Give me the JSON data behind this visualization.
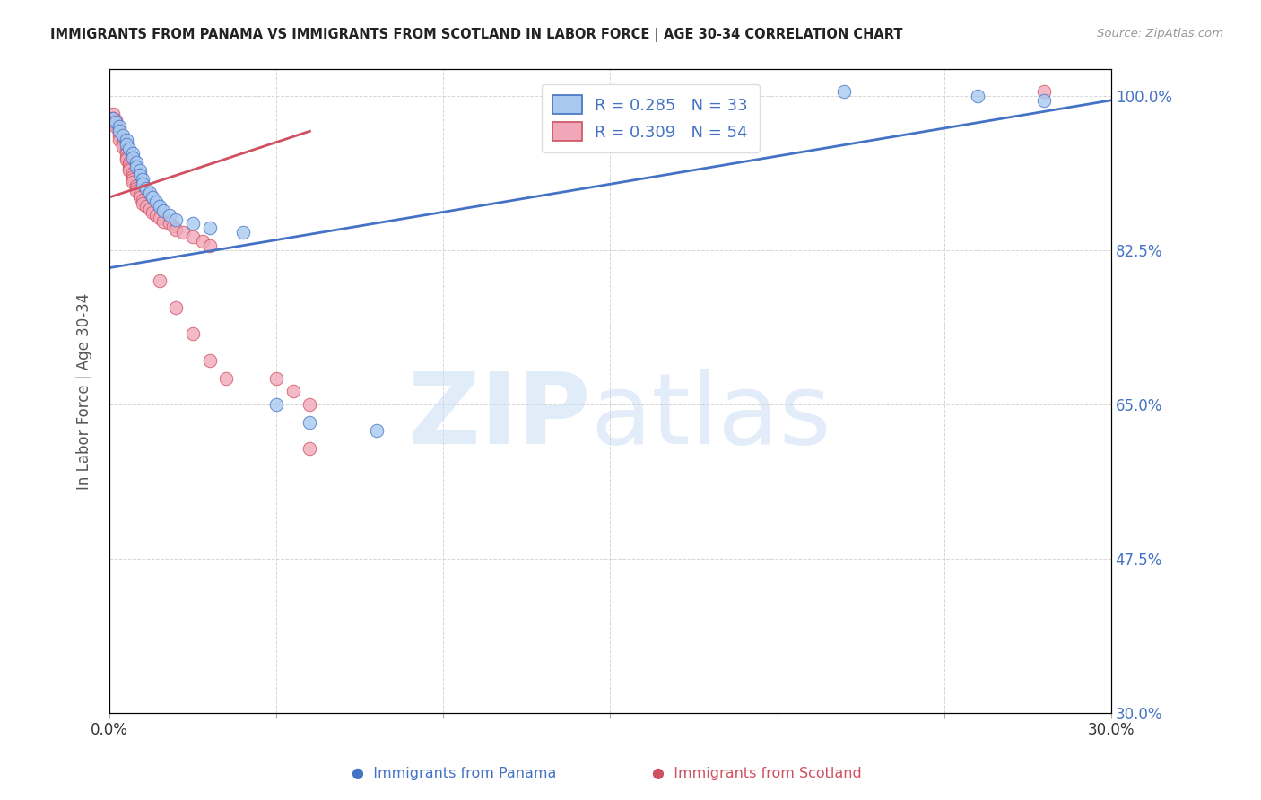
{
  "title": "IMMIGRANTS FROM PANAMA VS IMMIGRANTS FROM SCOTLAND IN LABOR FORCE | AGE 30-34 CORRELATION CHART",
  "source": "Source: ZipAtlas.com",
  "ylabel": "In Labor Force | Age 30-34",
  "xlim": [
    0.0,
    0.3
  ],
  "ylim": [
    0.3,
    1.03
  ],
  "yticks": [
    0.3,
    0.475,
    0.65,
    0.825,
    1.0
  ],
  "xticks": [
    0.0,
    0.05,
    0.1,
    0.15,
    0.2,
    0.25,
    0.3
  ],
  "panama_R": 0.285,
  "panama_N": 33,
  "scotland_R": 0.309,
  "scotland_N": 54,
  "panama_color": "#a8c8f0",
  "scotland_color": "#f0a8b8",
  "panama_line_color": "#4472c4",
  "scotland_line_color": "#d05060",
  "axis_label_color": "#4472c4",
  "watermark_zip_color": "#c8dff5",
  "watermark_atlas_color": "#b0ccee",
  "background_color": "#ffffff",
  "panama_x": [
    0.001,
    0.002,
    0.003,
    0.003,
    0.004,
    0.005,
    0.005,
    0.006,
    0.007,
    0.007,
    0.008,
    0.008,
    0.009,
    0.009,
    0.01,
    0.01,
    0.011,
    0.012,
    0.013,
    0.014,
    0.015,
    0.016,
    0.018,
    0.02,
    0.025,
    0.03,
    0.04,
    0.05,
    0.06,
    0.08,
    0.22,
    0.26,
    0.28
  ],
  "panama_y": [
    0.975,
    0.97,
    0.965,
    0.96,
    0.955,
    0.95,
    0.945,
    0.94,
    0.935,
    0.93,
    0.925,
    0.92,
    0.915,
    0.91,
    0.905,
    0.9,
    0.895,
    0.89,
    0.885,
    0.88,
    0.875,
    0.87,
    0.865,
    0.86,
    0.855,
    0.85,
    0.845,
    0.65,
    0.63,
    0.62,
    1.005,
    1.0,
    0.995
  ],
  "scotland_x": [
    0.001,
    0.001,
    0.002,
    0.002,
    0.002,
    0.003,
    0.003,
    0.003,
    0.003,
    0.004,
    0.004,
    0.004,
    0.005,
    0.005,
    0.005,
    0.005,
    0.006,
    0.006,
    0.006,
    0.006,
    0.007,
    0.007,
    0.007,
    0.007,
    0.008,
    0.008,
    0.008,
    0.009,
    0.009,
    0.01,
    0.01,
    0.011,
    0.012,
    0.013,
    0.014,
    0.015,
    0.016,
    0.018,
    0.019,
    0.02,
    0.022,
    0.025,
    0.028,
    0.03,
    0.015,
    0.02,
    0.025,
    0.03,
    0.035,
    0.05,
    0.055,
    0.06,
    0.06,
    0.28
  ],
  "scotland_y": [
    0.98,
    0.975,
    0.972,
    0.968,
    0.965,
    0.962,
    0.958,
    0.955,
    0.95,
    0.948,
    0.945,
    0.942,
    0.938,
    0.935,
    0.93,
    0.928,
    0.925,
    0.922,
    0.918,
    0.915,
    0.912,
    0.908,
    0.905,
    0.902,
    0.898,
    0.895,
    0.892,
    0.888,
    0.885,
    0.882,
    0.878,
    0.875,
    0.872,
    0.868,
    0.865,
    0.862,
    0.858,
    0.855,
    0.852,
    0.848,
    0.845,
    0.84,
    0.835,
    0.83,
    0.79,
    0.76,
    0.73,
    0.7,
    0.68,
    0.68,
    0.665,
    0.65,
    0.6,
    1.005
  ],
  "panama_trend_x": [
    0.0,
    0.3
  ],
  "panama_trend_y": [
    0.805,
    0.995
  ],
  "scotland_trend_x": [
    0.0,
    0.06
  ],
  "scotland_trend_y": [
    0.885,
    0.96
  ]
}
